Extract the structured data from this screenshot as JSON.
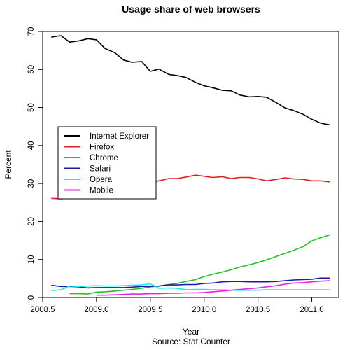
{
  "chart_data": {
    "type": "line",
    "title": "Usage share of web browsers",
    "xlabel": "Year",
    "source": "Source: Stat Counter",
    "ylabel": "Percent",
    "xlim": [
      2008.5,
      2011.25
    ],
    "ylim": [
      0,
      70
    ],
    "xticks": [
      "2008.5",
      "2009.0",
      "2009.5",
      "2010.0",
      "2010.5",
      "2011.0"
    ],
    "yticks": [
      "0",
      "10",
      "20",
      "30",
      "40",
      "50",
      "60",
      "70"
    ],
    "legend_position": "left",
    "series": [
      {
        "name": "Internet Explorer",
        "color": "#000000",
        "x": [
          2008.58,
          2008.67,
          2008.75,
          2008.83,
          2008.92,
          2009.0,
          2009.08,
          2009.17,
          2009.25,
          2009.33,
          2009.42,
          2009.5,
          2009.58,
          2009.67,
          2009.75,
          2009.83,
          2009.92,
          2010.0,
          2010.08,
          2010.17,
          2010.25,
          2010.33,
          2010.42,
          2010.5,
          2010.58,
          2010.67,
          2010.75,
          2010.83,
          2010.92,
          2011.0,
          2011.08,
          2011.17
        ],
        "y": [
          68.5,
          68.9,
          67.2,
          67.5,
          68.1,
          67.8,
          65.5,
          64.4,
          62.5,
          61.9,
          62.1,
          59.5,
          60.1,
          58.7,
          58.4,
          57.9,
          56.6,
          55.7,
          55.2,
          54.5,
          54.4,
          53.3,
          52.8,
          52.9,
          52.7,
          51.3,
          49.9,
          49.2,
          48.2,
          46.9,
          45.9,
          45.4
        ]
      },
      {
        "name": "Firefox",
        "color": "#df2020",
        "x": [
          2008.58,
          2008.67,
          2008.75,
          2008.83,
          2008.92,
          2009.0,
          2009.08,
          2009.17,
          2009.25,
          2009.33,
          2009.42,
          2009.5,
          2009.58,
          2009.67,
          2009.75,
          2009.83,
          2009.92,
          2010.0,
          2010.08,
          2010.17,
          2010.25,
          2010.33,
          2010.42,
          2010.5,
          2010.58,
          2010.67,
          2010.75,
          2010.83,
          2010.92,
          2011.0,
          2011.08,
          2011.17
        ],
        "y": [
          26.1,
          26.0,
          26.1,
          26.3,
          26.5,
          27.0,
          27.6,
          28.1,
          29.3,
          29.7,
          30.3,
          30.3,
          30.7,
          31.3,
          31.3,
          31.7,
          32.2,
          31.9,
          31.6,
          31.8,
          31.3,
          31.6,
          31.6,
          31.2,
          30.7,
          31.1,
          31.5,
          31.2,
          31.1,
          30.7,
          30.7,
          30.4
        ]
      },
      {
        "name": "Chrome",
        "color": "#22c222",
        "x": [
          2008.75,
          2008.83,
          2008.92,
          2009.0,
          2009.08,
          2009.17,
          2009.25,
          2009.33,
          2009.42,
          2009.5,
          2009.58,
          2009.67,
          2009.75,
          2009.83,
          2009.92,
          2010.0,
          2010.08,
          2010.17,
          2010.25,
          2010.33,
          2010.42,
          2010.5,
          2010.58,
          2010.67,
          2010.75,
          2010.83,
          2010.92,
          2011.0,
          2011.08,
          2011.17
        ],
        "y": [
          1.0,
          1.0,
          0.9,
          1.4,
          1.5,
          1.7,
          1.9,
          2.1,
          2.4,
          2.8,
          3.0,
          3.4,
          3.7,
          4.2,
          4.7,
          5.5,
          6.1,
          6.7,
          7.3,
          8.0,
          8.6,
          9.2,
          9.9,
          10.8,
          11.6,
          12.4,
          13.4,
          14.9,
          15.7,
          16.5
        ]
      },
      {
        "name": "Safari",
        "color": "#1a1aa8",
        "x": [
          2008.58,
          2008.67,
          2008.75,
          2008.83,
          2008.92,
          2009.0,
          2009.08,
          2009.17,
          2009.25,
          2009.33,
          2009.42,
          2009.5,
          2009.58,
          2009.67,
          2009.75,
          2009.83,
          2009.92,
          2010.0,
          2010.08,
          2010.17,
          2010.25,
          2010.33,
          2010.42,
          2010.5,
          2010.58,
          2010.67,
          2010.75,
          2010.83,
          2010.92,
          2011.0,
          2011.08,
          2011.17
        ],
        "y": [
          3.2,
          2.9,
          2.9,
          2.8,
          2.5,
          2.6,
          2.6,
          2.6,
          2.6,
          2.7,
          2.9,
          2.9,
          3.0,
          3.3,
          3.3,
          3.4,
          3.4,
          3.7,
          3.8,
          4.1,
          4.2,
          4.2,
          4.1,
          4.1,
          4.1,
          4.2,
          4.4,
          4.6,
          4.7,
          4.8,
          5.1,
          5.1
        ]
      },
      {
        "name": "Opera",
        "color": "#19e8e8",
        "x": [
          2008.58,
          2008.67,
          2008.75,
          2008.83,
          2008.92,
          2009.0,
          2009.08,
          2009.17,
          2009.25,
          2009.33,
          2009.42,
          2009.5,
          2009.58,
          2009.67,
          2009.75,
          2009.83,
          2009.92,
          2010.0,
          2010.08,
          2010.17,
          2010.25,
          2010.33,
          2010.42,
          2010.5,
          2010.58,
          2010.67,
          2010.75,
          2010.83,
          2010.92,
          2011.0,
          2011.08,
          2011.17
        ],
        "y": [
          1.8,
          2.0,
          3.0,
          2.9,
          3.0,
          3.1,
          3.0,
          3.0,
          3.1,
          3.2,
          3.3,
          3.6,
          2.4,
          2.5,
          2.4,
          2.0,
          2.1,
          2.1,
          2.0,
          2.0,
          1.9,
          1.9,
          1.9,
          1.9,
          2.0,
          2.0,
          2.0,
          2.0,
          2.0,
          2.0,
          2.0,
          2.0
        ]
      },
      {
        "name": "Mobile",
        "color": "#e61ee6",
        "x": [
          2009.0,
          2009.08,
          2009.17,
          2009.25,
          2009.33,
          2009.42,
          2009.5,
          2009.58,
          2009.67,
          2009.75,
          2009.83,
          2009.92,
          2010.0,
          2010.08,
          2010.17,
          2010.25,
          2010.33,
          2010.42,
          2010.5,
          2010.58,
          2010.67,
          2010.75,
          2010.83,
          2010.92,
          2011.0,
          2011.08,
          2011.17
        ],
        "y": [
          0.6,
          0.6,
          0.7,
          0.8,
          0.9,
          0.9,
          1.0,
          1.0,
          1.1,
          1.1,
          1.2,
          1.2,
          1.3,
          1.5,
          1.7,
          1.9,
          2.1,
          2.3,
          2.5,
          2.8,
          3.1,
          3.5,
          3.8,
          3.9,
          4.1,
          4.3,
          4.4
        ]
      }
    ]
  }
}
